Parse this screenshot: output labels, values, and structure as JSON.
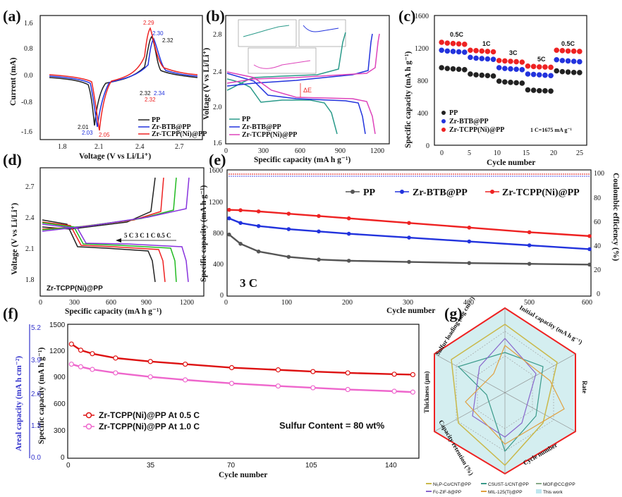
{
  "panels": {
    "a": {
      "label": "(a)",
      "ylabel": "Current (mA)",
      "xlabel": "Voltage (V vs Li/Li⁺)",
      "yticks": [
        "1.6",
        "0.8",
        "0.0",
        "-0.8",
        "-1.6"
      ],
      "xticks": [
        "1.8",
        "2.1",
        "2.4",
        "2.7"
      ],
      "annots": [
        "2.29",
        "2.30",
        "2.32",
        "2.32",
        "2.34",
        "2.32",
        "2.01",
        "2.03",
        "2.05"
      ],
      "legend": [
        "PP",
        "Zr-BTB@PP",
        "Zr-TCPP(Ni)@PP"
      ]
    },
    "b": {
      "label": "(b)",
      "ylabel": "Voltage (V vs Li/Li⁺)",
      "xlabel": "Specific capacity (mA h g⁻¹)",
      "yticks": [
        "2.8",
        "2.4",
        "2.0",
        "1.6"
      ],
      "xticks": [
        "0",
        "300",
        "600",
        "900",
        "1200"
      ],
      "delta": "ΔE",
      "legend": [
        "PP",
        "Zr-BTB@PP",
        "Zr-TCPP(Ni)@PP"
      ]
    },
    "c": {
      "label": "(c)",
      "ylabel": "Specific capacity (mA h g⁻¹)",
      "xlabel": "Cycle number",
      "yticks": [
        "1600",
        "1200",
        "800",
        "400",
        "0"
      ],
      "xticks": [
        "0",
        "5",
        "10",
        "15",
        "20",
        "25"
      ],
      "rates": [
        "0.5C",
        "1C",
        "3C",
        "5C",
        "0.5C"
      ],
      "legend": [
        "PP",
        "Zr-BTB@PP",
        "Zr-TCPP(Ni)@PP"
      ],
      "note": "1 C=1675 mA g⁻¹"
    },
    "d": {
      "label": "(d)",
      "ylabel": "Voltage (V vs Li/Li⁺)",
      "xlabel": "Specific capacity (mA h g⁻¹)",
      "yticks": [
        "2.7",
        "2.4",
        "2.1",
        "1.8"
      ],
      "xticks": [
        "0",
        "300",
        "600",
        "900",
        "1200"
      ],
      "rates": "5 C  3 C  1 C  0.5 C",
      "sample": "Zr-TCPP(Ni)@PP"
    },
    "e": {
      "label": "(e)",
      "ylabel": "Specific capacity (mA h g⁻¹)",
      "y2label": "Coulombic efficiency (%)",
      "xlabel": "Cycle number",
      "yticks": [
        "1600",
        "1200",
        "800",
        "400",
        "0"
      ],
      "y2ticks": [
        "100",
        "80",
        "60",
        "40",
        "20",
        "0"
      ],
      "xticks": [
        "0",
        "100",
        "200",
        "300",
        "400",
        "500",
        "600"
      ],
      "rate": "3 C",
      "legend": [
        "PP",
        "Zr-BTB@PP",
        "Zr-TCPP(Ni)@PP"
      ]
    },
    "f": {
      "label": "(f)",
      "ylabel": "Specific capacity (mA h g⁻¹)",
      "y2label": "Areal capacity (mA h cm⁻²)",
      "xlabel": "Cycle number",
      "yticks": [
        "1500",
        "1200",
        "900",
        "600",
        "300",
        "0"
      ],
      "y2ticks": [
        "5.2",
        "3.9",
        "2.6",
        "1.3",
        "0.0"
      ],
      "xticks": [
        "0",
        "35",
        "70",
        "105",
        "140"
      ],
      "legend": [
        "Zr-TCPP(Ni)@PP At 0.5 C",
        "Zr-TCPP(Ni)@PP At 1.0 C"
      ],
      "note": "Sulfur Content = 80 wt%"
    },
    "g": {
      "label": "(g)",
      "axes": [
        "Sulfur loading (mg cm⁻²)",
        "Initial capacity (mA h g⁻¹)",
        "Rate",
        "Cycle number",
        "Capacity retention (%)",
        "Thickness (μm)"
      ],
      "legend": [
        "Ni₂P-Co/CNT@PP",
        "CSUST-1/CNT@PP",
        "MOF@CC@PP",
        "Fc-ZIF-8@PP",
        "MIL-125(Ti)@PP",
        "This work"
      ]
    }
  },
  "chart_data": [
    {
      "type": "line",
      "panel": "c",
      "xlabel": "Cycle number",
      "ylabel": "Specific capacity (mA h g⁻¹)",
      "ylim": [
        0,
        1600
      ],
      "xlim": [
        0,
        26
      ],
      "series": [
        {
          "name": "PP",
          "color": "#222222",
          "x": [
            1,
            2,
            3,
            4,
            5,
            6,
            7,
            8,
            9,
            10,
            11,
            12,
            13,
            14,
            15,
            16,
            17,
            18,
            19,
            20,
            21,
            22,
            23,
            24,
            25
          ],
          "values": [
            960,
            950,
            945,
            940,
            935,
            880,
            870,
            865,
            860,
            855,
            790,
            780,
            775,
            770,
            765,
            680,
            675,
            670,
            668,
            665,
            920,
            910,
            905,
            900,
            898
          ]
        },
        {
          "name": "Zr-BTB@PP",
          "color": "#2233dd",
          "x": [
            1,
            2,
            3,
            4,
            5,
            6,
            7,
            8,
            9,
            10,
            11,
            12,
            13,
            14,
            15,
            16,
            17,
            18,
            19,
            20,
            21,
            22,
            23,
            24,
            25
          ],
          "values": [
            1180,
            1170,
            1165,
            1160,
            1155,
            1090,
            1080,
            1075,
            1070,
            1065,
            960,
            950,
            945,
            940,
            935,
            880,
            875,
            870,
            865,
            860,
            1060,
            1050,
            1045,
            1040,
            1035
          ]
        },
        {
          "name": "Zr-TCPP(Ni)@PP",
          "color": "#ee2222",
          "x": [
            1,
            2,
            3,
            4,
            5,
            6,
            7,
            8,
            9,
            10,
            11,
            12,
            13,
            14,
            15,
            16,
            17,
            18,
            19,
            20,
            21,
            22,
            23,
            24,
            25
          ],
          "values": [
            1280,
            1270,
            1265,
            1260,
            1255,
            1180,
            1175,
            1170,
            1165,
            1160,
            1050,
            1045,
            1040,
            1035,
            1030,
            980,
            975,
            970,
            968,
            965,
            1180,
            1175,
            1170,
            1168,
            1165
          ]
        }
      ]
    },
    {
      "type": "line",
      "panel": "e",
      "xlabel": "Cycle number",
      "ylabel": "Specific capacity (mA h g⁻¹)",
      "ylim": [
        0,
        1600
      ],
      "xlim": [
        0,
        600
      ],
      "series": [
        {
          "name": "PP",
          "color": "#555555",
          "x": [
            1,
            20,
            50,
            100,
            150,
            200,
            300,
            400,
            500,
            600
          ],
          "values": [
            780,
            660,
            560,
            490,
            455,
            440,
            425,
            410,
            400,
            390
          ]
        },
        {
          "name": "Zr-BTB@PP",
          "color": "#2233dd",
          "x": [
            1,
            20,
            50,
            100,
            150,
            200,
            300,
            400,
            500,
            600
          ],
          "values": [
            990,
            930,
            890,
            850,
            820,
            790,
            740,
            690,
            640,
            590
          ]
        },
        {
          "name": "Zr-TCPP(Ni)@PP",
          "color": "#ee2222",
          "x": [
            1,
            20,
            50,
            100,
            150,
            200,
            300,
            400,
            500,
            600
          ],
          "values": [
            1100,
            1095,
            1080,
            1050,
            1020,
            990,
            930,
            870,
            810,
            760
          ]
        }
      ]
    },
    {
      "type": "line",
      "panel": "f",
      "xlabel": "Cycle number",
      "ylabel": "Specific capacity (mA h g⁻¹)",
      "ylim": [
        0,
        1500
      ],
      "xlim": [
        0,
        150
      ],
      "series": [
        {
          "name": "Zr-TCPP(Ni)@PP At 0.5 C",
          "color": "#dd1111",
          "x": [
            1,
            5,
            10,
            20,
            35,
            50,
            70,
            90,
            105,
            120,
            140,
            148
          ],
          "values": [
            1290,
            1220,
            1180,
            1130,
            1090,
            1060,
            1020,
            995,
            975,
            960,
            945,
            940
          ]
        },
        {
          "name": "Zr-TCPP(Ni)@PP At 1.0 C",
          "color": "#ee66cc",
          "x": [
            1,
            5,
            10,
            20,
            35,
            50,
            70,
            90,
            105,
            120,
            140,
            148
          ],
          "values": [
            1060,
            1030,
            1000,
            960,
            915,
            880,
            840,
            810,
            790,
            770,
            750,
            740
          ]
        }
      ]
    }
  ]
}
